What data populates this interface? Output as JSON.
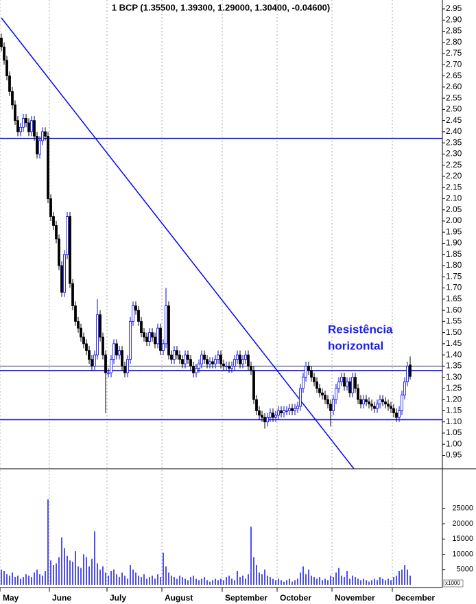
{
  "chart_data": {
    "type": "candlestick",
    "title": "1 BCP (1.35500, 1.39300, 1.29000, 1.30400, -0.04600)",
    "annotation": [
      "Resistência",
      "horizontal"
    ],
    "volume_unit": "x1000",
    "up_color": "#0000ff",
    "down_color": "#000000",
    "volume_color": "#0000ff",
    "levels": [
      2.37,
      1.35,
      1.33,
      1.11
    ],
    "level_colors": [
      "#0000ff",
      "#333366",
      "#0000ff",
      "#0000ff"
    ],
    "trendline": {
      "x": [
        0,
        128.5
      ],
      "y": [
        2.91,
        0.89
      ],
      "color": "#0000ff"
    },
    "categories": [
      "May",
      null,
      null,
      null,
      null,
      null,
      null,
      null,
      null,
      null,
      null,
      null,
      null,
      null,
      null,
      null,
      null,
      null,
      "June",
      null,
      null,
      null,
      null,
      null,
      null,
      null,
      null,
      null,
      null,
      null,
      null,
      null,
      null,
      null,
      null,
      null,
      null,
      null,
      null,
      "July",
      null,
      null,
      null,
      null,
      null,
      null,
      null,
      null,
      null,
      null,
      null,
      null,
      null,
      null,
      null,
      null,
      null,
      null,
      null,
      "August",
      null,
      null,
      null,
      null,
      null,
      null,
      null,
      null,
      null,
      null,
      null,
      null,
      null,
      null,
      null,
      null,
      null,
      null,
      null,
      null,
      null,
      "September",
      null,
      null,
      null,
      null,
      null,
      null,
      null,
      null,
      null,
      null,
      null,
      null,
      null,
      null,
      null,
      null,
      null,
      null,
      null,
      "October",
      null,
      null,
      null,
      null,
      null,
      null,
      null,
      null,
      null,
      null,
      null,
      null,
      null,
      null,
      null,
      null,
      null,
      null,
      null,
      "November",
      null,
      null,
      null,
      null,
      null,
      null,
      null,
      null,
      null,
      null,
      null,
      null,
      null,
      null,
      null,
      null,
      null,
      null,
      null,
      null,
      null,
      "December",
      null,
      null,
      null,
      null,
      null,
      null
    ],
    "open": [
      2.82,
      2.78,
      2.72,
      2.65,
      2.58,
      2.52,
      2.45,
      2.4,
      2.42,
      2.46,
      2.44,
      2.4,
      2.45,
      2.38,
      2.3,
      2.36,
      2.4,
      2.38,
      2.1,
      2.02,
      1.98,
      1.92,
      1.8,
      1.68,
      1.85,
      2.02,
      1.72,
      1.62,
      1.55,
      1.52,
      1.48,
      1.45,
      1.42,
      1.38,
      1.35,
      1.4,
      1.58,
      1.48,
      1.4,
      1.32,
      1.32,
      1.38,
      1.45,
      1.4,
      1.42,
      1.35,
      1.32,
      1.38,
      1.55,
      1.62,
      1.6,
      1.55,
      1.5,
      1.48,
      1.46,
      1.5,
      1.48,
      1.45,
      1.52,
      1.42,
      1.45,
      1.62,
      1.4,
      1.38,
      1.42,
      1.4,
      1.38,
      1.36,
      1.4,
      1.38,
      1.35,
      1.32,
      1.34,
      1.36,
      1.4,
      1.38,
      1.36,
      1.37,
      1.36,
      1.38,
      1.4,
      1.36,
      1.35,
      1.35,
      1.34,
      1.35,
      1.38,
      1.4,
      1.36,
      1.38,
      1.4,
      1.35,
      1.33,
      1.2,
      1.15,
      1.13,
      1.12,
      1.1,
      1.12,
      1.14,
      1.12,
      1.13,
      1.15,
      1.14,
      1.15,
      1.15,
      1.16,
      1.15,
      1.16,
      1.17,
      1.25,
      1.3,
      1.35,
      1.33,
      1.3,
      1.28,
      1.25,
      1.23,
      1.22,
      1.2,
      1.18,
      1.15,
      1.2,
      1.25,
      1.28,
      1.3,
      1.26,
      1.28,
      1.23,
      1.3,
      1.25,
      1.2,
      1.18,
      1.2,
      1.19,
      1.18,
      1.17,
      1.16,
      1.18,
      1.2,
      1.19,
      1.18,
      1.17,
      1.16,
      1.14,
      1.12,
      1.15,
      1.22,
      1.28,
      1.355
    ],
    "high": [
      2.84,
      2.8,
      2.74,
      2.67,
      2.6,
      2.54,
      2.47,
      2.44,
      2.48,
      2.48,
      2.46,
      2.47,
      2.47,
      2.4,
      2.38,
      2.42,
      2.42,
      2.4,
      2.12,
      2.04,
      2.0,
      1.94,
      1.82,
      1.87,
      2.04,
      2.04,
      1.74,
      1.64,
      1.57,
      1.54,
      1.5,
      1.47,
      1.44,
      1.4,
      1.42,
      1.65,
      1.6,
      1.5,
      1.42,
      1.34,
      1.4,
      1.47,
      1.47,
      1.44,
      1.44,
      1.37,
      1.4,
      1.57,
      1.64,
      1.64,
      1.62,
      1.57,
      1.52,
      1.5,
      1.52,
      1.52,
      1.5,
      1.54,
      1.54,
      1.47,
      1.7,
      1.64,
      1.42,
      1.44,
      1.44,
      1.42,
      1.4,
      1.42,
      1.42,
      1.4,
      1.37,
      1.36,
      1.38,
      1.42,
      1.42,
      1.4,
      1.39,
      1.39,
      1.4,
      1.42,
      1.42,
      1.38,
      1.37,
      1.37,
      1.37,
      1.4,
      1.42,
      1.42,
      1.4,
      1.42,
      1.42,
      1.37,
      1.35,
      1.22,
      1.17,
      1.15,
      1.14,
      1.14,
      1.16,
      1.16,
      1.15,
      1.17,
      1.17,
      1.17,
      1.17,
      1.18,
      1.18,
      1.18,
      1.19,
      1.27,
      1.32,
      1.37,
      1.37,
      1.35,
      1.32,
      1.3,
      1.27,
      1.25,
      1.24,
      1.22,
      1.2,
      1.22,
      1.27,
      1.3,
      1.32,
      1.32,
      1.3,
      1.3,
      1.32,
      1.32,
      1.27,
      1.22,
      1.22,
      1.22,
      1.21,
      1.2,
      1.19,
      1.2,
      1.22,
      1.22,
      1.21,
      1.2,
      1.19,
      1.18,
      1.16,
      1.17,
      1.24,
      1.3,
      1.37,
      1.393
    ],
    "low": [
      2.76,
      2.7,
      2.63,
      2.56,
      2.5,
      2.43,
      2.38,
      2.38,
      2.4,
      2.42,
      2.38,
      2.38,
      2.36,
      2.28,
      2.28,
      2.34,
      2.36,
      2.08,
      2.0,
      1.96,
      1.9,
      1.78,
      1.66,
      1.66,
      1.83,
      1.7,
      1.6,
      1.53,
      1.5,
      1.46,
      1.43,
      1.4,
      1.36,
      1.33,
      1.33,
      1.38,
      1.46,
      1.38,
      1.14,
      1.3,
      1.3,
      1.36,
      1.38,
      1.38,
      1.33,
      1.3,
      1.3,
      1.36,
      1.53,
      1.58,
      1.53,
      1.48,
      1.46,
      1.44,
      1.44,
      1.46,
      1.43,
      1.43,
      1.4,
      1.4,
      1.43,
      1.38,
      1.36,
      1.36,
      1.38,
      1.36,
      1.34,
      1.34,
      1.36,
      1.33,
      1.3,
      1.3,
      1.32,
      1.34,
      1.36,
      1.34,
      1.34,
      1.34,
      1.34,
      1.36,
      1.34,
      1.33,
      1.33,
      1.32,
      1.32,
      1.33,
      1.36,
      1.34,
      1.34,
      1.36,
      1.33,
      1.31,
      1.18,
      1.13,
      1.11,
      1.1,
      1.07,
      1.08,
      1.1,
      1.1,
      1.1,
      1.11,
      1.12,
      1.12,
      1.13,
      1.13,
      1.13,
      1.13,
      1.14,
      1.15,
      1.23,
      1.28,
      1.31,
      1.28,
      1.26,
      1.23,
      1.21,
      1.2,
      1.18,
      1.16,
      1.08,
      1.13,
      1.18,
      1.23,
      1.26,
      1.24,
      1.24,
      1.21,
      1.21,
      1.23,
      1.18,
      1.16,
      1.16,
      1.17,
      1.16,
      1.15,
      1.14,
      1.14,
      1.16,
      1.17,
      1.16,
      1.15,
      1.14,
      1.12,
      1.1,
      1.1,
      1.13,
      1.2,
      1.26,
      1.29
    ],
    "close": [
      2.78,
      2.72,
      2.65,
      2.58,
      2.52,
      2.45,
      2.4,
      2.42,
      2.46,
      2.44,
      2.4,
      2.45,
      2.38,
      2.3,
      2.36,
      2.4,
      2.38,
      2.1,
      2.02,
      1.98,
      1.92,
      1.8,
      1.68,
      1.85,
      2.02,
      1.72,
      1.62,
      1.55,
      1.52,
      1.48,
      1.45,
      1.42,
      1.38,
      1.35,
      1.4,
      1.58,
      1.48,
      1.4,
      1.32,
      1.32,
      1.38,
      1.45,
      1.4,
      1.42,
      1.35,
      1.32,
      1.38,
      1.55,
      1.62,
      1.6,
      1.55,
      1.5,
      1.48,
      1.46,
      1.5,
      1.48,
      1.45,
      1.52,
      1.42,
      1.45,
      1.62,
      1.4,
      1.38,
      1.42,
      1.4,
      1.38,
      1.36,
      1.4,
      1.38,
      1.35,
      1.32,
      1.34,
      1.36,
      1.4,
      1.38,
      1.36,
      1.37,
      1.36,
      1.38,
      1.4,
      1.36,
      1.35,
      1.35,
      1.34,
      1.35,
      1.38,
      1.4,
      1.36,
      1.38,
      1.4,
      1.35,
      1.33,
      1.2,
      1.15,
      1.13,
      1.12,
      1.1,
      1.12,
      1.14,
      1.12,
      1.13,
      1.15,
      1.14,
      1.15,
      1.15,
      1.16,
      1.15,
      1.16,
      1.17,
      1.25,
      1.3,
      1.35,
      1.33,
      1.3,
      1.28,
      1.25,
      1.23,
      1.22,
      1.2,
      1.18,
      1.15,
      1.2,
      1.25,
      1.28,
      1.3,
      1.26,
      1.28,
      1.23,
      1.3,
      1.25,
      1.2,
      1.18,
      1.2,
      1.19,
      1.18,
      1.17,
      1.16,
      1.18,
      1.2,
      1.19,
      1.18,
      1.17,
      1.16,
      1.14,
      1.12,
      1.15,
      1.22,
      1.28,
      1.35,
      1.304
    ],
    "volume": [
      5000,
      4500,
      3500,
      3000,
      4000,
      2500,
      3000,
      2000,
      2500,
      3500,
      3000,
      2500,
      4000,
      5000,
      3500,
      3000,
      4500,
      28000,
      8000,
      6500,
      7000,
      9000,
      15500,
      12000,
      9500,
      8000,
      7500,
      11000,
      6000,
      5500,
      10000,
      9000,
      6000,
      8500,
      17500,
      7000,
      5000,
      6000,
      4000,
      3000,
      4500,
      5000,
      3500,
      2500,
      4000,
      3000,
      2000,
      6500,
      5000,
      4000,
      3000,
      2500,
      3500,
      2000,
      2500,
      3000,
      2000,
      3500,
      2500,
      10500,
      6000,
      4000,
      3000,
      2500,
      2000,
      3000,
      2500,
      2000,
      1500,
      2500,
      3000,
      2000,
      1500,
      2000,
      2500,
      1500,
      1000,
      1500,
      2000,
      1500,
      2000,
      1500,
      2500,
      3000,
      2000,
      1500,
      4500,
      2500,
      3000,
      2000,
      3500,
      19000,
      9000,
      6500,
      4000,
      3500,
      5000,
      3000,
      2500,
      2000,
      1500,
      2000,
      1500,
      1000,
      1500,
      2000,
      1000,
      1500,
      2000,
      4000,
      6000,
      3500,
      5000,
      3000,
      2500,
      2000,
      2500,
      1500,
      2000,
      1500,
      3000,
      2500,
      4000,
      5500,
      3000,
      2500,
      4500,
      2000,
      3000,
      2500,
      2000,
      1500,
      2000,
      1500,
      1000,
      1500,
      2000,
      1500,
      2500,
      2000,
      1500,
      2000,
      1500,
      2500,
      3000,
      4500,
      5000,
      6500,
      5000,
      3000
    ],
    "ylim": [
      0.89,
      2.99
    ],
    "yticks": [
      2.95,
      {
        "value": 2.9,
        "label": "2.90"
      },
      2.85,
      {
        "value": 2.8,
        "label": "2.80"
      },
      2.75,
      {
        "value": 2.7,
        "label": "2.70"
      },
      2.65,
      {
        "value": 2.6,
        "label": "2.60"
      },
      2.55,
      {
        "value": 2.5,
        "label": "2.50"
      },
      2.45,
      {
        "value": 2.4,
        "label": "2.40"
      },
      2.35,
      {
        "value": 2.3,
        "label": "2.30"
      },
      2.25,
      {
        "value": 2.2,
        "label": "2.20"
      },
      2.15,
      {
        "value": 2.1,
        "label": "2.10"
      },
      2.05,
      {
        "value": 2,
        "label": "2.00"
      },
      1.95,
      {
        "value": 1.9,
        "label": "1.90"
      },
      1.85,
      {
        "value": 1.8,
        "label": "1.80"
      },
      1.75,
      {
        "value": 1.7,
        "label": "1.70"
      },
      1.65,
      {
        "value": 1.6,
        "label": "1.60"
      },
      1.55,
      {
        "value": 1.5,
        "label": "1.50"
      },
      1.45,
      {
        "value": 1.4,
        "label": "1.40"
      },
      1.35,
      {
        "value": 1.3,
        "label": "1.30"
      },
      1.25,
      {
        "value": 1.2,
        "label": "1.20"
      },
      1.15,
      {
        "value": 1.1,
        "label": "1.10"
      },
      1.05,
      {
        "value": 1,
        "label": "1.00"
      },
      0.95
    ],
    "y2lim": [
      0,
      38000
    ],
    "y2ticks": [
      5000,
      10000,
      15000,
      20000,
      25000
    ]
  }
}
